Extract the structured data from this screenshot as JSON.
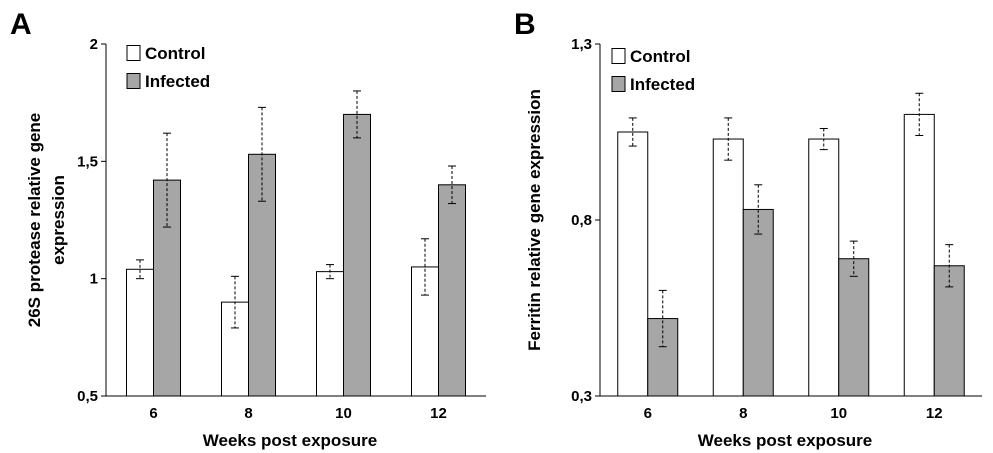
{
  "chart_data": [
    {
      "panel_label": "A",
      "type": "bar",
      "categories": [
        "6",
        "8",
        "10",
        "12"
      ],
      "series": [
        {
          "name": "Control",
          "values": [
            1.04,
            0.9,
            1.03,
            1.05
          ],
          "errors": [
            0.04,
            0.11,
            0.03,
            0.12
          ],
          "color": "#ffffff"
        },
        {
          "name": "Infected",
          "values": [
            1.42,
            1.53,
            1.7,
            1.4
          ],
          "errors": [
            0.2,
            0.2,
            0.1,
            0.08
          ],
          "color": "#a6a6a6"
        }
      ],
      "xlabel": "Weeks post exposure",
      "ylabel": "26S protease relative gene expression",
      "ylabel_lines": [
        "26S protease relative gene",
        "expression"
      ],
      "ylim": [
        0.5,
        2
      ],
      "yticks": [
        0.5,
        1,
        1.5,
        2
      ],
      "ytick_labels": [
        "0,5",
        "1",
        "1,5",
        "2"
      ],
      "legend": "top-left",
      "grid": false
    },
    {
      "panel_label": "B",
      "type": "bar",
      "categories": [
        "6",
        "8",
        "10",
        "12"
      ],
      "series": [
        {
          "name": "Control",
          "values": [
            1.05,
            1.03,
            1.03,
            1.1
          ],
          "errors": [
            0.04,
            0.06,
            0.03,
            0.06
          ],
          "color": "#ffffff"
        },
        {
          "name": "Infected",
          "values": [
            0.52,
            0.83,
            0.69,
            0.67
          ],
          "errors": [
            0.08,
            0.07,
            0.05,
            0.06
          ],
          "color": "#a6a6a6"
        }
      ],
      "xlabel": "Weeks post exposure",
      "ylabel": "Ferritin relative gene expression",
      "ylabel_lines": [
        "Ferritin relative gene expression"
      ],
      "ylim": [
        0.3,
        1.3
      ],
      "yticks": [
        0.3,
        0.8,
        1.3
      ],
      "ytick_labels": [
        "0,3",
        "0,8",
        "1,3"
      ],
      "legend": "top-left",
      "grid": false
    }
  ]
}
